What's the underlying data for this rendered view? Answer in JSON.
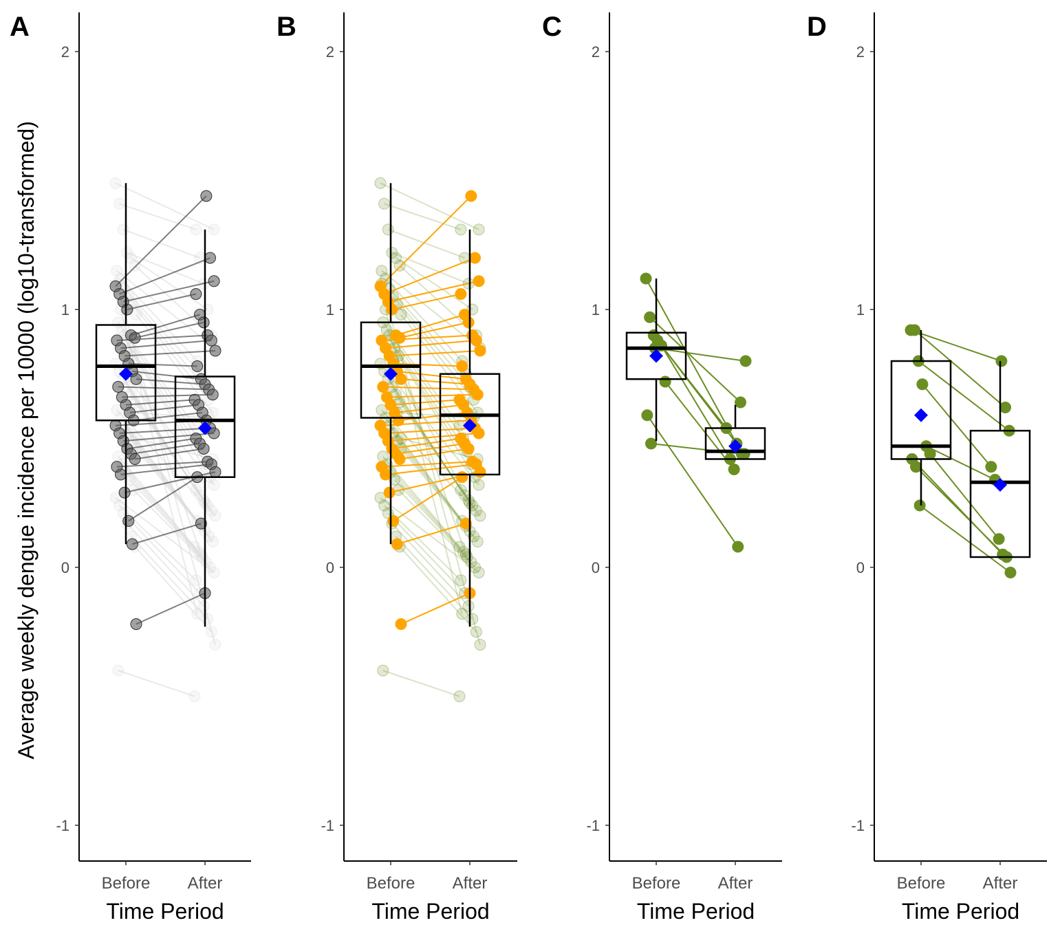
{
  "ylabel": "Average weekly dengue incidence per 10000 (log10-transformed)",
  "colors": {
    "mean_marker": "#0000ff",
    "grey_highlight": "#555555",
    "grey_background": "#d9d9d9",
    "orange_highlight": "#ffa500",
    "green": "#6b8e23",
    "box_stroke": "#000000"
  },
  "chart_data": [
    {
      "panel": "A",
      "type": "box-paired",
      "categories": [
        "Before",
        "After"
      ],
      "xlabel": "Time Period",
      "ylim": [
        -1.14,
        2.16
      ],
      "yticks": [
        2,
        1,
        0,
        -1
      ],
      "boxes": [
        {
          "category": "Before",
          "whisker_low": 0.09,
          "q1": 0.57,
          "median": 0.78,
          "q3": 0.94,
          "whisker_high": 1.49,
          "mean": 0.75
        },
        {
          "category": "After",
          "whisker_low": -0.23,
          "q1": 0.35,
          "median": 0.57,
          "q3": 0.74,
          "whisker_high": 1.31,
          "mean": 0.54
        }
      ],
      "highlight_pairs": [
        [
          1.09,
          1.44
        ],
        [
          1.06,
          1.2
        ],
        [
          1.03,
          1.11
        ],
        [
          1.0,
          1.06
        ],
        [
          0.9,
          0.98
        ],
        [
          0.89,
          0.95
        ],
        [
          0.88,
          0.9
        ],
        [
          0.85,
          0.88
        ],
        [
          0.82,
          0.84
        ],
        [
          0.79,
          0.78
        ],
        [
          0.76,
          0.73
        ],
        [
          0.73,
          0.71
        ],
        [
          0.7,
          0.69
        ],
        [
          0.66,
          0.67
        ],
        [
          0.63,
          0.65
        ],
        [
          0.6,
          0.63
        ],
        [
          0.57,
          0.6
        ],
        [
          0.55,
          0.57
        ],
        [
          0.52,
          0.54
        ],
        [
          0.49,
          0.52
        ],
        [
          0.46,
          0.5
        ],
        [
          0.44,
          0.48
        ],
        [
          0.42,
          0.46
        ],
        [
          0.39,
          0.41
        ],
        [
          0.36,
          0.4
        ],
        [
          0.29,
          0.37
        ],
        [
          0.18,
          0.35
        ],
        [
          0.09,
          0.17
        ],
        [
          -0.22,
          -0.1
        ]
      ],
      "background_pairs": [
        [
          1.49,
          1.31
        ],
        [
          1.41,
          1.31
        ],
        [
          1.31,
          1.2
        ],
        [
          1.22,
          1.1
        ],
        [
          1.2,
          1.0
        ],
        [
          1.17,
          0.9
        ],
        [
          1.15,
          0.85
        ],
        [
          1.12,
          0.8
        ],
        [
          1.08,
          0.75
        ],
        [
          1.05,
          0.7
        ],
        [
          1.02,
          0.65
        ],
        [
          0.98,
          0.6
        ],
        [
          0.95,
          0.55
        ],
        [
          0.92,
          0.5
        ],
        [
          0.88,
          0.45
        ],
        [
          0.85,
          0.4
        ],
        [
          0.82,
          0.35
        ],
        [
          0.79,
          0.32
        ],
        [
          0.76,
          0.3
        ],
        [
          0.73,
          0.28
        ],
        [
          0.7,
          0.26
        ],
        [
          0.67,
          0.24
        ],
        [
          0.64,
          0.22
        ],
        [
          0.61,
          0.2
        ],
        [
          0.58,
          0.18
        ],
        [
          0.55,
          0.16
        ],
        [
          0.52,
          0.14
        ],
        [
          0.49,
          0.12
        ],
        [
          0.46,
          0.1
        ],
        [
          0.43,
          0.08
        ],
        [
          0.4,
          0.06
        ],
        [
          0.37,
          0.04
        ],
        [
          0.34,
          0.02
        ],
        [
          0.3,
          0.0
        ],
        [
          0.27,
          -0.02
        ],
        [
          0.24,
          -0.05
        ],
        [
          0.21,
          -0.1
        ],
        [
          0.17,
          -0.15
        ],
        [
          0.12,
          -0.2
        ],
        [
          0.08,
          -0.25
        ],
        [
          1.1,
          -0.3
        ],
        [
          1.0,
          -0.18
        ],
        [
          0.9,
          0.05
        ],
        [
          0.8,
          0.25
        ],
        [
          0.6,
          0.58
        ],
        [
          0.5,
          0.42
        ],
        [
          -0.4,
          -0.5
        ]
      ]
    },
    {
      "panel": "B",
      "type": "box-paired",
      "categories": [
        "Before",
        "After"
      ],
      "xlabel": "Time Period",
      "ylim": [
        -1.14,
        2.16
      ],
      "yticks": [
        2,
        1,
        0,
        -1
      ],
      "boxes": [
        {
          "category": "Before",
          "whisker_low": 0.09,
          "q1": 0.58,
          "median": 0.78,
          "q3": 0.95,
          "whisker_high": 1.49,
          "mean": 0.75
        },
        {
          "category": "After",
          "whisker_low": -0.23,
          "q1": 0.36,
          "median": 0.59,
          "q3": 0.75,
          "whisker_high": 1.31,
          "mean": 0.55
        }
      ],
      "highlight_pairs": [
        [
          1.09,
          1.44
        ],
        [
          1.06,
          1.2
        ],
        [
          1.03,
          1.11
        ],
        [
          1.0,
          1.06
        ],
        [
          0.9,
          0.98
        ],
        [
          0.89,
          0.95
        ],
        [
          0.88,
          0.9
        ],
        [
          0.85,
          0.88
        ],
        [
          0.82,
          0.84
        ],
        [
          0.79,
          0.78
        ],
        [
          0.76,
          0.73
        ],
        [
          0.73,
          0.71
        ],
        [
          0.7,
          0.69
        ],
        [
          0.66,
          0.67
        ],
        [
          0.63,
          0.65
        ],
        [
          0.6,
          0.63
        ],
        [
          0.57,
          0.6
        ],
        [
          0.55,
          0.57
        ],
        [
          0.52,
          0.54
        ],
        [
          0.49,
          0.52
        ],
        [
          0.46,
          0.5
        ],
        [
          0.44,
          0.48
        ],
        [
          0.42,
          0.46
        ],
        [
          0.39,
          0.41
        ],
        [
          0.36,
          0.4
        ],
        [
          0.29,
          0.37
        ],
        [
          0.18,
          0.35
        ],
        [
          0.09,
          0.17
        ],
        [
          -0.22,
          -0.1
        ]
      ],
      "background_pairs": [
        [
          1.49,
          1.31
        ],
        [
          1.41,
          1.31
        ],
        [
          1.31,
          1.2
        ],
        [
          1.22,
          1.1
        ],
        [
          1.2,
          1.0
        ],
        [
          1.17,
          0.9
        ],
        [
          1.15,
          0.85
        ],
        [
          1.12,
          0.8
        ],
        [
          1.08,
          0.75
        ],
        [
          1.05,
          0.7
        ],
        [
          1.02,
          0.65
        ],
        [
          0.98,
          0.6
        ],
        [
          0.95,
          0.55
        ],
        [
          0.92,
          0.5
        ],
        [
          0.88,
          0.45
        ],
        [
          0.85,
          0.4
        ],
        [
          0.82,
          0.35
        ],
        [
          0.79,
          0.32
        ],
        [
          0.76,
          0.3
        ],
        [
          0.73,
          0.28
        ],
        [
          0.7,
          0.26
        ],
        [
          0.67,
          0.24
        ],
        [
          0.64,
          0.22
        ],
        [
          0.61,
          0.2
        ],
        [
          0.58,
          0.18
        ],
        [
          0.55,
          0.16
        ],
        [
          0.52,
          0.14
        ],
        [
          0.49,
          0.12
        ],
        [
          0.46,
          0.1
        ],
        [
          0.43,
          0.08
        ],
        [
          0.4,
          0.06
        ],
        [
          0.37,
          0.04
        ],
        [
          0.34,
          0.02
        ],
        [
          0.3,
          0.0
        ],
        [
          0.27,
          -0.02
        ],
        [
          0.24,
          -0.05
        ],
        [
          0.21,
          -0.1
        ],
        [
          0.17,
          -0.15
        ],
        [
          0.12,
          -0.2
        ],
        [
          0.08,
          -0.25
        ],
        [
          1.1,
          -0.3
        ],
        [
          1.0,
          -0.18
        ],
        [
          0.9,
          0.05
        ],
        [
          0.8,
          0.25
        ],
        [
          0.6,
          0.58
        ],
        [
          0.5,
          0.42
        ],
        [
          -0.4,
          -0.5
        ]
      ]
    },
    {
      "panel": "C",
      "type": "box-paired",
      "categories": [
        "Before",
        "After"
      ],
      "xlabel": "Time Period",
      "ylim": [
        -1.14,
        2.16
      ],
      "yticks": [
        2,
        1,
        0,
        -1
      ],
      "boxes": [
        {
          "category": "Before",
          "whisker_low": 0.49,
          "q1": 0.73,
          "median": 0.85,
          "q3": 0.91,
          "whisker_high": 1.12,
          "mean": 0.82
        },
        {
          "category": "After",
          "whisker_low": 0.42,
          "q1": 0.42,
          "median": 0.45,
          "q3": 0.54,
          "whisker_high": 0.63,
          "mean": 0.47
        }
      ],
      "highlight_pairs": [
        [
          1.12,
          0.48
        ],
        [
          0.97,
          0.64
        ],
        [
          0.9,
          0.44
        ],
        [
          0.88,
          0.54
        ],
        [
          0.86,
          0.42
        ],
        [
          0.72,
          0.38
        ],
        [
          0.59,
          0.08
        ],
        [
          0.48,
          0.44
        ],
        [
          0.85,
          0.8
        ]
      ]
    },
    {
      "panel": "D",
      "type": "box-paired",
      "categories": [
        "Before",
        "After"
      ],
      "xlabel": "Time Period",
      "ylim": [
        -1.14,
        2.16
      ],
      "yticks": [
        2,
        1,
        0,
        -1
      ],
      "boxes": [
        {
          "category": "Before",
          "whisker_low": 0.24,
          "q1": 0.42,
          "median": 0.47,
          "q3": 0.8,
          "whisker_high": 0.92,
          "mean": 0.59
        },
        {
          "category": "After",
          "whisker_low": 0.04,
          "q1": 0.04,
          "median": 0.33,
          "q3": 0.53,
          "whisker_high": 0.8,
          "mean": 0.32
        }
      ],
      "highlight_pairs": [
        [
          0.92,
          0.8
        ],
        [
          0.92,
          0.62
        ],
        [
          0.8,
          0.53
        ],
        [
          0.71,
          0.39
        ],
        [
          0.47,
          0.34
        ],
        [
          0.44,
          0.11
        ],
        [
          0.42,
          0.05
        ],
        [
          0.39,
          0.04
        ],
        [
          0.24,
          -0.02
        ]
      ]
    }
  ]
}
